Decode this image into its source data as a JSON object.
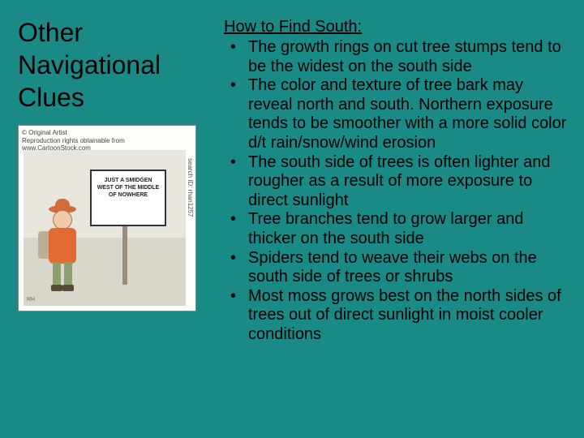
{
  "title": "Other Navigational Clues",
  "cartoon": {
    "credit_line1": "© Original Artist",
    "credit_line2": "Reproduction rights obtainable from",
    "credit_line3": "www.CartoonStock.com",
    "search_id": "search ID: rhan1257",
    "sign_text": "JUST A SMIDGEN WEST OF THE MIDDLE OF NOWHERE",
    "signature": "RH"
  },
  "section_heading": "How to Find South:",
  "bullets": [
    "The growth rings on cut tree stumps tend to be the widest on the south side",
    "The color and texture of tree bark may reveal north and south. Northern exposure tends to be smoother with a more solid color d/t rain/snow/wind erosion",
    "The south side of trees is often lighter and rougher as a result of more exposure to direct sunlight",
    "Tree branches tend to grow larger and thicker on the south side",
    "Spiders tend to weave their webs on the south side of trees or shrubs",
    "Most moss grows best on the north sides of trees out of direct sunlight in moist cooler conditions"
  ],
  "colors": {
    "background": "#1a8a87",
    "text": "#000000",
    "cartoon_bg": "#fdfdf9",
    "hiker_jacket": "#e36a33",
    "hiker_hat": "#d36a3a",
    "sign_bg": "#ffffff"
  }
}
